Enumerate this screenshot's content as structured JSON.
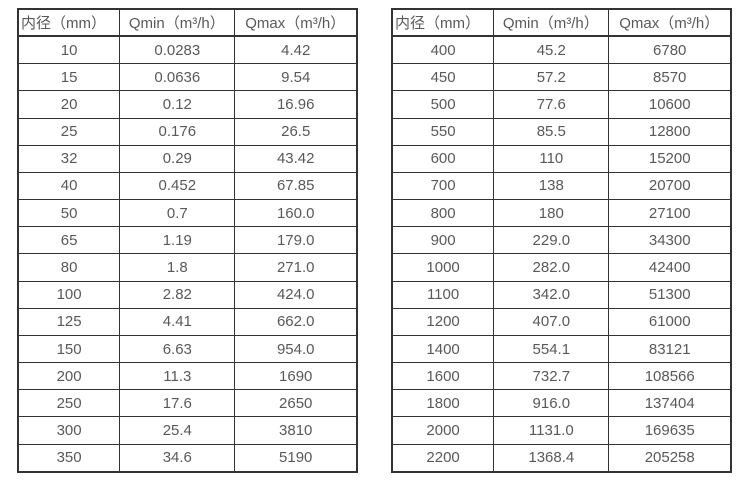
{
  "colors": {
    "border": "#333333",
    "text": "#595959",
    "background": "#ffffff"
  },
  "tables": [
    {
      "name": "flow-range-table-small-diameters",
      "headers": [
        "内径（mm）",
        "Qmin（m³/h）",
        "Qmax（m³/h）"
      ],
      "rows": [
        [
          "10",
          "0.0283",
          "4.42"
        ],
        [
          "15",
          "0.0636",
          "9.54"
        ],
        [
          "20",
          "0.12",
          "16.96"
        ],
        [
          "25",
          "0.176",
          "26.5"
        ],
        [
          "32",
          "0.29",
          "43.42"
        ],
        [
          "40",
          "0.452",
          "67.85"
        ],
        [
          "50",
          "0.7",
          "160.0"
        ],
        [
          "65",
          "1.19",
          "179.0"
        ],
        [
          "80",
          "1.8",
          "271.0"
        ],
        [
          "100",
          "2.82",
          "424.0"
        ],
        [
          "125",
          "4.41",
          "662.0"
        ],
        [
          "150",
          "6.63",
          "954.0"
        ],
        [
          "200",
          "11.3",
          "1690"
        ],
        [
          "250",
          "17.6",
          "2650"
        ],
        [
          "300",
          "25.4",
          "3810"
        ],
        [
          "350",
          "34.6",
          "5190"
        ]
      ]
    },
    {
      "name": "flow-range-table-large-diameters",
      "headers": [
        "内径（mm）",
        "Qmin（m³/h）",
        "Qmax（m³/h）"
      ],
      "rows": [
        [
          "400",
          "45.2",
          "6780"
        ],
        [
          "450",
          "57.2",
          "8570"
        ],
        [
          "500",
          "77.6",
          "10600"
        ],
        [
          "550",
          "85.5",
          "12800"
        ],
        [
          "600",
          "110",
          "15200"
        ],
        [
          "700",
          "138",
          "20700"
        ],
        [
          "800",
          "180",
          "27100"
        ],
        [
          "900",
          "229.0",
          "34300"
        ],
        [
          "1000",
          "282.0",
          "42400"
        ],
        [
          "1100",
          "342.0",
          "51300"
        ],
        [
          "1200",
          "407.0",
          "61000"
        ],
        [
          "1400",
          "554.1",
          "83121"
        ],
        [
          "1600",
          "732.7",
          "108566"
        ],
        [
          "1800",
          "916.0",
          "137404"
        ],
        [
          "2000",
          "1131.0",
          "169635"
        ],
        [
          "2200",
          "1368.4",
          "205258"
        ]
      ]
    }
  ]
}
